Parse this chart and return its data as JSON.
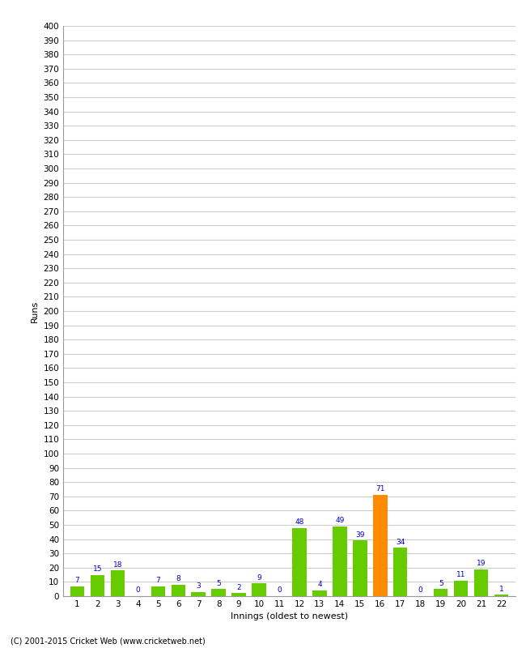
{
  "innings": [
    1,
    2,
    3,
    4,
    5,
    6,
    7,
    8,
    9,
    10,
    11,
    12,
    13,
    14,
    15,
    16,
    17,
    18,
    19,
    20,
    21,
    22
  ],
  "runs": [
    7,
    15,
    18,
    0,
    7,
    8,
    3,
    5,
    2,
    9,
    0,
    48,
    4,
    49,
    39,
    71,
    34,
    0,
    5,
    11,
    19,
    1
  ],
  "colors": [
    "#66cc00",
    "#66cc00",
    "#66cc00",
    "#66cc00",
    "#66cc00",
    "#66cc00",
    "#66cc00",
    "#66cc00",
    "#66cc00",
    "#66cc00",
    "#66cc00",
    "#66cc00",
    "#66cc00",
    "#66cc00",
    "#66cc00",
    "#ff8c00",
    "#66cc00",
    "#66cc00",
    "#66cc00",
    "#66cc00",
    "#66cc00",
    "#66cc00"
  ],
  "xlabel": "Innings (oldest to newest)",
  "ylabel": "Runs",
  "yticks": [
    0,
    10,
    20,
    30,
    40,
    50,
    60,
    70,
    80,
    90,
    100,
    110,
    120,
    130,
    140,
    150,
    160,
    170,
    180,
    190,
    200,
    210,
    220,
    230,
    240,
    250,
    260,
    270,
    280,
    290,
    300,
    310,
    320,
    330,
    340,
    350,
    360,
    370,
    380,
    390,
    400
  ],
  "ylim": [
    0,
    400
  ],
  "footer": "(C) 2001-2015 Cricket Web (www.cricketweb.net)",
  "bg_color": "#ffffff",
  "grid_color": "#cccccc",
  "label_color": "#0000cc",
  "bar_label_fontsize": 6.5,
  "axis_label_fontsize": 8,
  "tick_fontsize": 7.5,
  "footer_fontsize": 7
}
